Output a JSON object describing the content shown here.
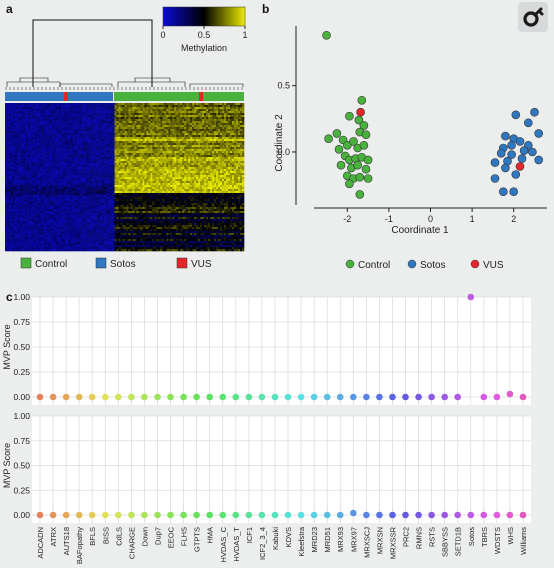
{
  "panels": {
    "a": "a",
    "b": "b",
    "c": "c"
  },
  "heatmap": {
    "colorbar_title": "Methylation",
    "colorbar_ticks": [
      "0",
      "0.5",
      "1"
    ],
    "colors": {
      "low": "#0a0ad6",
      "mid": "#000000",
      "high": "#ecec00",
      "control": "#49b23c",
      "sotos": "#2f78c0",
      "vus": "#e2262a"
    }
  },
  "legend_a": [
    {
      "label": "Control",
      "color": "#49b23c"
    },
    {
      "label": "Sotos",
      "color": "#2f78c0"
    },
    {
      "label": "VUS",
      "color": "#e2262a"
    }
  ],
  "legend_b": [
    {
      "label": "Control",
      "color": "#49b23c"
    },
    {
      "label": "Sotos",
      "color": "#2f78c0"
    },
    {
      "label": "VUS",
      "color": "#e2262a"
    }
  ],
  "chart_data": [
    {
      "type": "scatter",
      "panel": "b",
      "xlabel": "Coordinate 1",
      "ylabel": "Coordinate 2",
      "xlim": [
        -2.8,
        2.8
      ],
      "ylim": [
        -0.4,
        0.95
      ],
      "xticks": [
        "-2",
        "-1",
        "0",
        "1",
        "2"
      ],
      "yticks": [
        "0.0",
        "0.5"
      ],
      "grid": false,
      "legend": "bottom",
      "series": [
        {
          "name": "Control",
          "color": "#49b23c",
          "points": [
            [
              -2.5,
              0.88
            ],
            [
              -1.65,
              0.39
            ],
            [
              -1.95,
              0.27
            ],
            [
              -1.72,
              0.24
            ],
            [
              -1.6,
              0.2
            ],
            [
              -2.25,
              0.14
            ],
            [
              -1.7,
              0.15
            ],
            [
              -1.55,
              0.13
            ],
            [
              -2.45,
              0.1
            ],
            [
              -2.1,
              0.09
            ],
            [
              -2.0,
              0.05
            ],
            [
              -1.85,
              0.08
            ],
            [
              -2.2,
              0.02
            ],
            [
              -1.75,
              0.03
            ],
            [
              -1.6,
              0.05
            ],
            [
              -2.05,
              -0.03
            ],
            [
              -1.95,
              -0.06
            ],
            [
              -1.8,
              -0.05
            ],
            [
              -1.65,
              -0.04
            ],
            [
              -1.5,
              -0.06
            ],
            [
              -2.15,
              -0.1
            ],
            [
              -1.9,
              -0.12
            ],
            [
              -1.75,
              -0.1
            ],
            [
              -1.55,
              -0.13
            ],
            [
              -2.0,
              -0.18
            ],
            [
              -1.85,
              -0.2
            ],
            [
              -1.7,
              -0.19
            ],
            [
              -1.95,
              -0.24
            ],
            [
              -1.7,
              -0.32
            ],
            [
              -1.5,
              -0.2
            ]
          ]
        },
        {
          "name": "Sotos",
          "color": "#2f78c0",
          "points": [
            [
              2.5,
              0.3
            ],
            [
              2.35,
              0.22
            ],
            [
              2.05,
              0.28
            ],
            [
              1.8,
              0.12
            ],
            [
              2.6,
              0.14
            ],
            [
              2.0,
              0.1
            ],
            [
              2.15,
              0.08
            ],
            [
              2.35,
              0.05
            ],
            [
              1.95,
              0.05
            ],
            [
              1.75,
              0.03
            ],
            [
              2.25,
              0.01
            ],
            [
              1.7,
              -0.01
            ],
            [
              2.45,
              0.0
            ],
            [
              1.95,
              -0.02
            ],
            [
              2.2,
              -0.05
            ],
            [
              1.55,
              -0.08
            ],
            [
              1.85,
              -0.07
            ],
            [
              2.6,
              -0.06
            ],
            [
              1.8,
              -0.12
            ],
            [
              2.05,
              -0.17
            ],
            [
              1.55,
              -0.2
            ],
            [
              1.75,
              -0.3
            ],
            [
              2.0,
              -0.3
            ]
          ]
        },
        {
          "name": "VUS",
          "color": "#e2262a",
          "points": [
            [
              -1.68,
              0.3
            ],
            [
              2.15,
              -0.11
            ]
          ]
        }
      ]
    },
    {
      "type": "scatter",
      "panel": "c-top",
      "ylabel": "MVP Score",
      "ylim": [
        0,
        1
      ],
      "yticks": [
        "0.00",
        "0.25",
        "0.50",
        "0.75",
        "1.00"
      ],
      "grid": true,
      "categories": [
        "ADCADN",
        "ATRX",
        "AUTS18",
        "BAFopathy",
        "BFLS",
        "BISS",
        "CdLS",
        "CHARGE",
        "Down",
        "Dup7",
        "EEOC",
        "FLHS",
        "GTPTS",
        "HMA",
        "HVDAS_C",
        "HVDAS_T",
        "ICF1",
        "ICF2_3_4",
        "Kabuki",
        "KDVS",
        "Kleefstra",
        "MRD23",
        "MRD51",
        "MRX93",
        "MRX97",
        "MRXSCJ",
        "MRXSN",
        "MRXSSR",
        "PRC2",
        "RMNS",
        "RSTS",
        "SBBYSS",
        "SETD1B",
        "Sotos",
        "TBRS",
        "WDSTS",
        "WHS",
        "Williams"
      ],
      "values": [
        0,
        0,
        0,
        0,
        0,
        0,
        0,
        0,
        0,
        0,
        0,
        0,
        0,
        0,
        0,
        0,
        0,
        0,
        0,
        0,
        0,
        0,
        0,
        0,
        0,
        0,
        0,
        0,
        0,
        0,
        0,
        0,
        0,
        1.0,
        0,
        0,
        0.03,
        0
      ]
    },
    {
      "type": "scatter",
      "panel": "c-bottom",
      "ylabel": "MVP Score",
      "ylim": [
        0,
        1
      ],
      "yticks": [
        "0.00",
        "0.25",
        "0.50",
        "0.75",
        "1.00"
      ],
      "grid": true,
      "categories": [
        "ADCADN",
        "ATRX",
        "AUTS18",
        "BAFopathy",
        "BFLS",
        "BISS",
        "CdLS",
        "CHARGE",
        "Down",
        "Dup7",
        "EEOC",
        "FLHS",
        "GTPTS",
        "HMA",
        "HVDAS_C",
        "HVDAS_T",
        "ICF1",
        "ICF2_3_4",
        "Kabuki",
        "KDVS",
        "Kleefstra",
        "MRD23",
        "MRD51",
        "MRX93",
        "MRX97",
        "MRXSCJ",
        "MRXSN",
        "MRXSSR",
        "PRC2",
        "RMNS",
        "RSTS",
        "SBBYSS",
        "SETD1B",
        "Sotos",
        "TBRS",
        "WDSTS",
        "WHS",
        "Williams"
      ],
      "values": [
        0,
        0,
        0,
        0,
        0,
        0,
        0,
        0,
        0,
        0,
        0,
        0,
        0,
        0,
        0,
        0,
        0,
        0,
        0,
        0,
        0,
        0,
        0,
        0,
        0.02,
        0,
        0,
        0,
        0,
        0,
        0,
        0,
        0,
        0,
        0,
        0,
        0,
        0
      ]
    }
  ]
}
